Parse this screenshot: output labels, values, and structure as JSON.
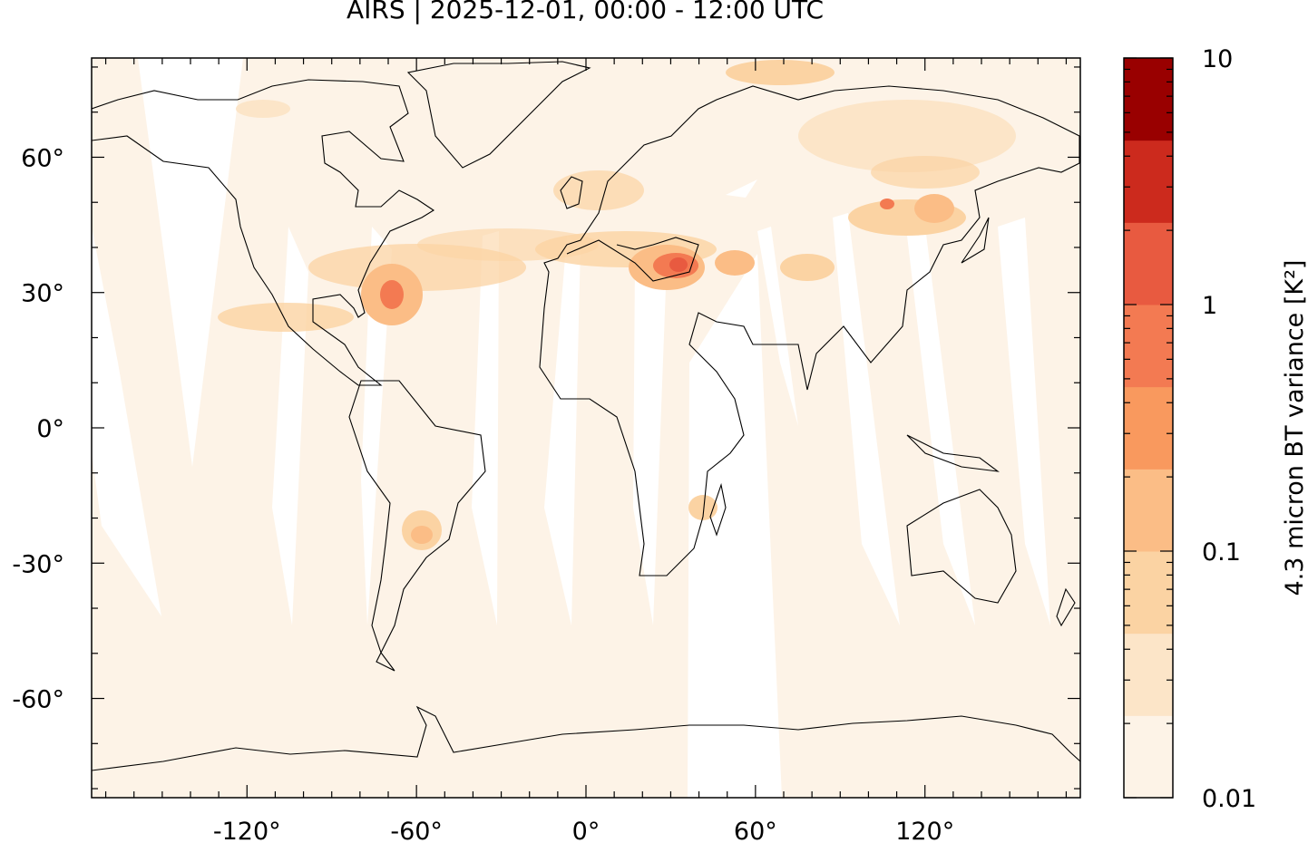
{
  "title": "AIRS | 2025-12-01, 00:00 - 12:00 UTC",
  "map": {
    "projection": "equirectangular",
    "lon_range": [
      -175,
      175
    ],
    "lat_range": [
      -82,
      82
    ],
    "x_ticks": [
      {
        "lon": -120,
        "label": "-120°"
      },
      {
        "lon": -60,
        "label": "-60°"
      },
      {
        "lon": 0,
        "label": "0°"
      },
      {
        "lon": 60,
        "label": "60°"
      },
      {
        "lon": 120,
        "label": "120°"
      }
    ],
    "y_ticks": [
      {
        "lat": 60,
        "label": "60°"
      },
      {
        "lat": 30,
        "label": "30°"
      },
      {
        "lat": 0,
        "label": "0°"
      },
      {
        "lat": -30,
        "label": "-30°"
      },
      {
        "lat": -60,
        "label": "-60°"
      }
    ],
    "background_color": "#fdf3e7",
    "coastline_color": "#000000"
  },
  "colorbar": {
    "label": "4.3 micron BT variance [K²]",
    "scale": "log",
    "range": [
      0.01,
      10
    ],
    "tick_labels": [
      {
        "value": 10,
        "label": "10"
      },
      {
        "value": 1,
        "label": "1"
      },
      {
        "value": 0.1,
        "label": "0.1"
      },
      {
        "value": 0.01,
        "label": "0.01"
      }
    ],
    "colors": [
      "#fdf3e7",
      "#fce5c8",
      "#fbd3a3",
      "#fbbd86",
      "#f9995e",
      "#f37a52",
      "#e85a40",
      "#cc2a1d",
      "#990000"
    ]
  }
}
